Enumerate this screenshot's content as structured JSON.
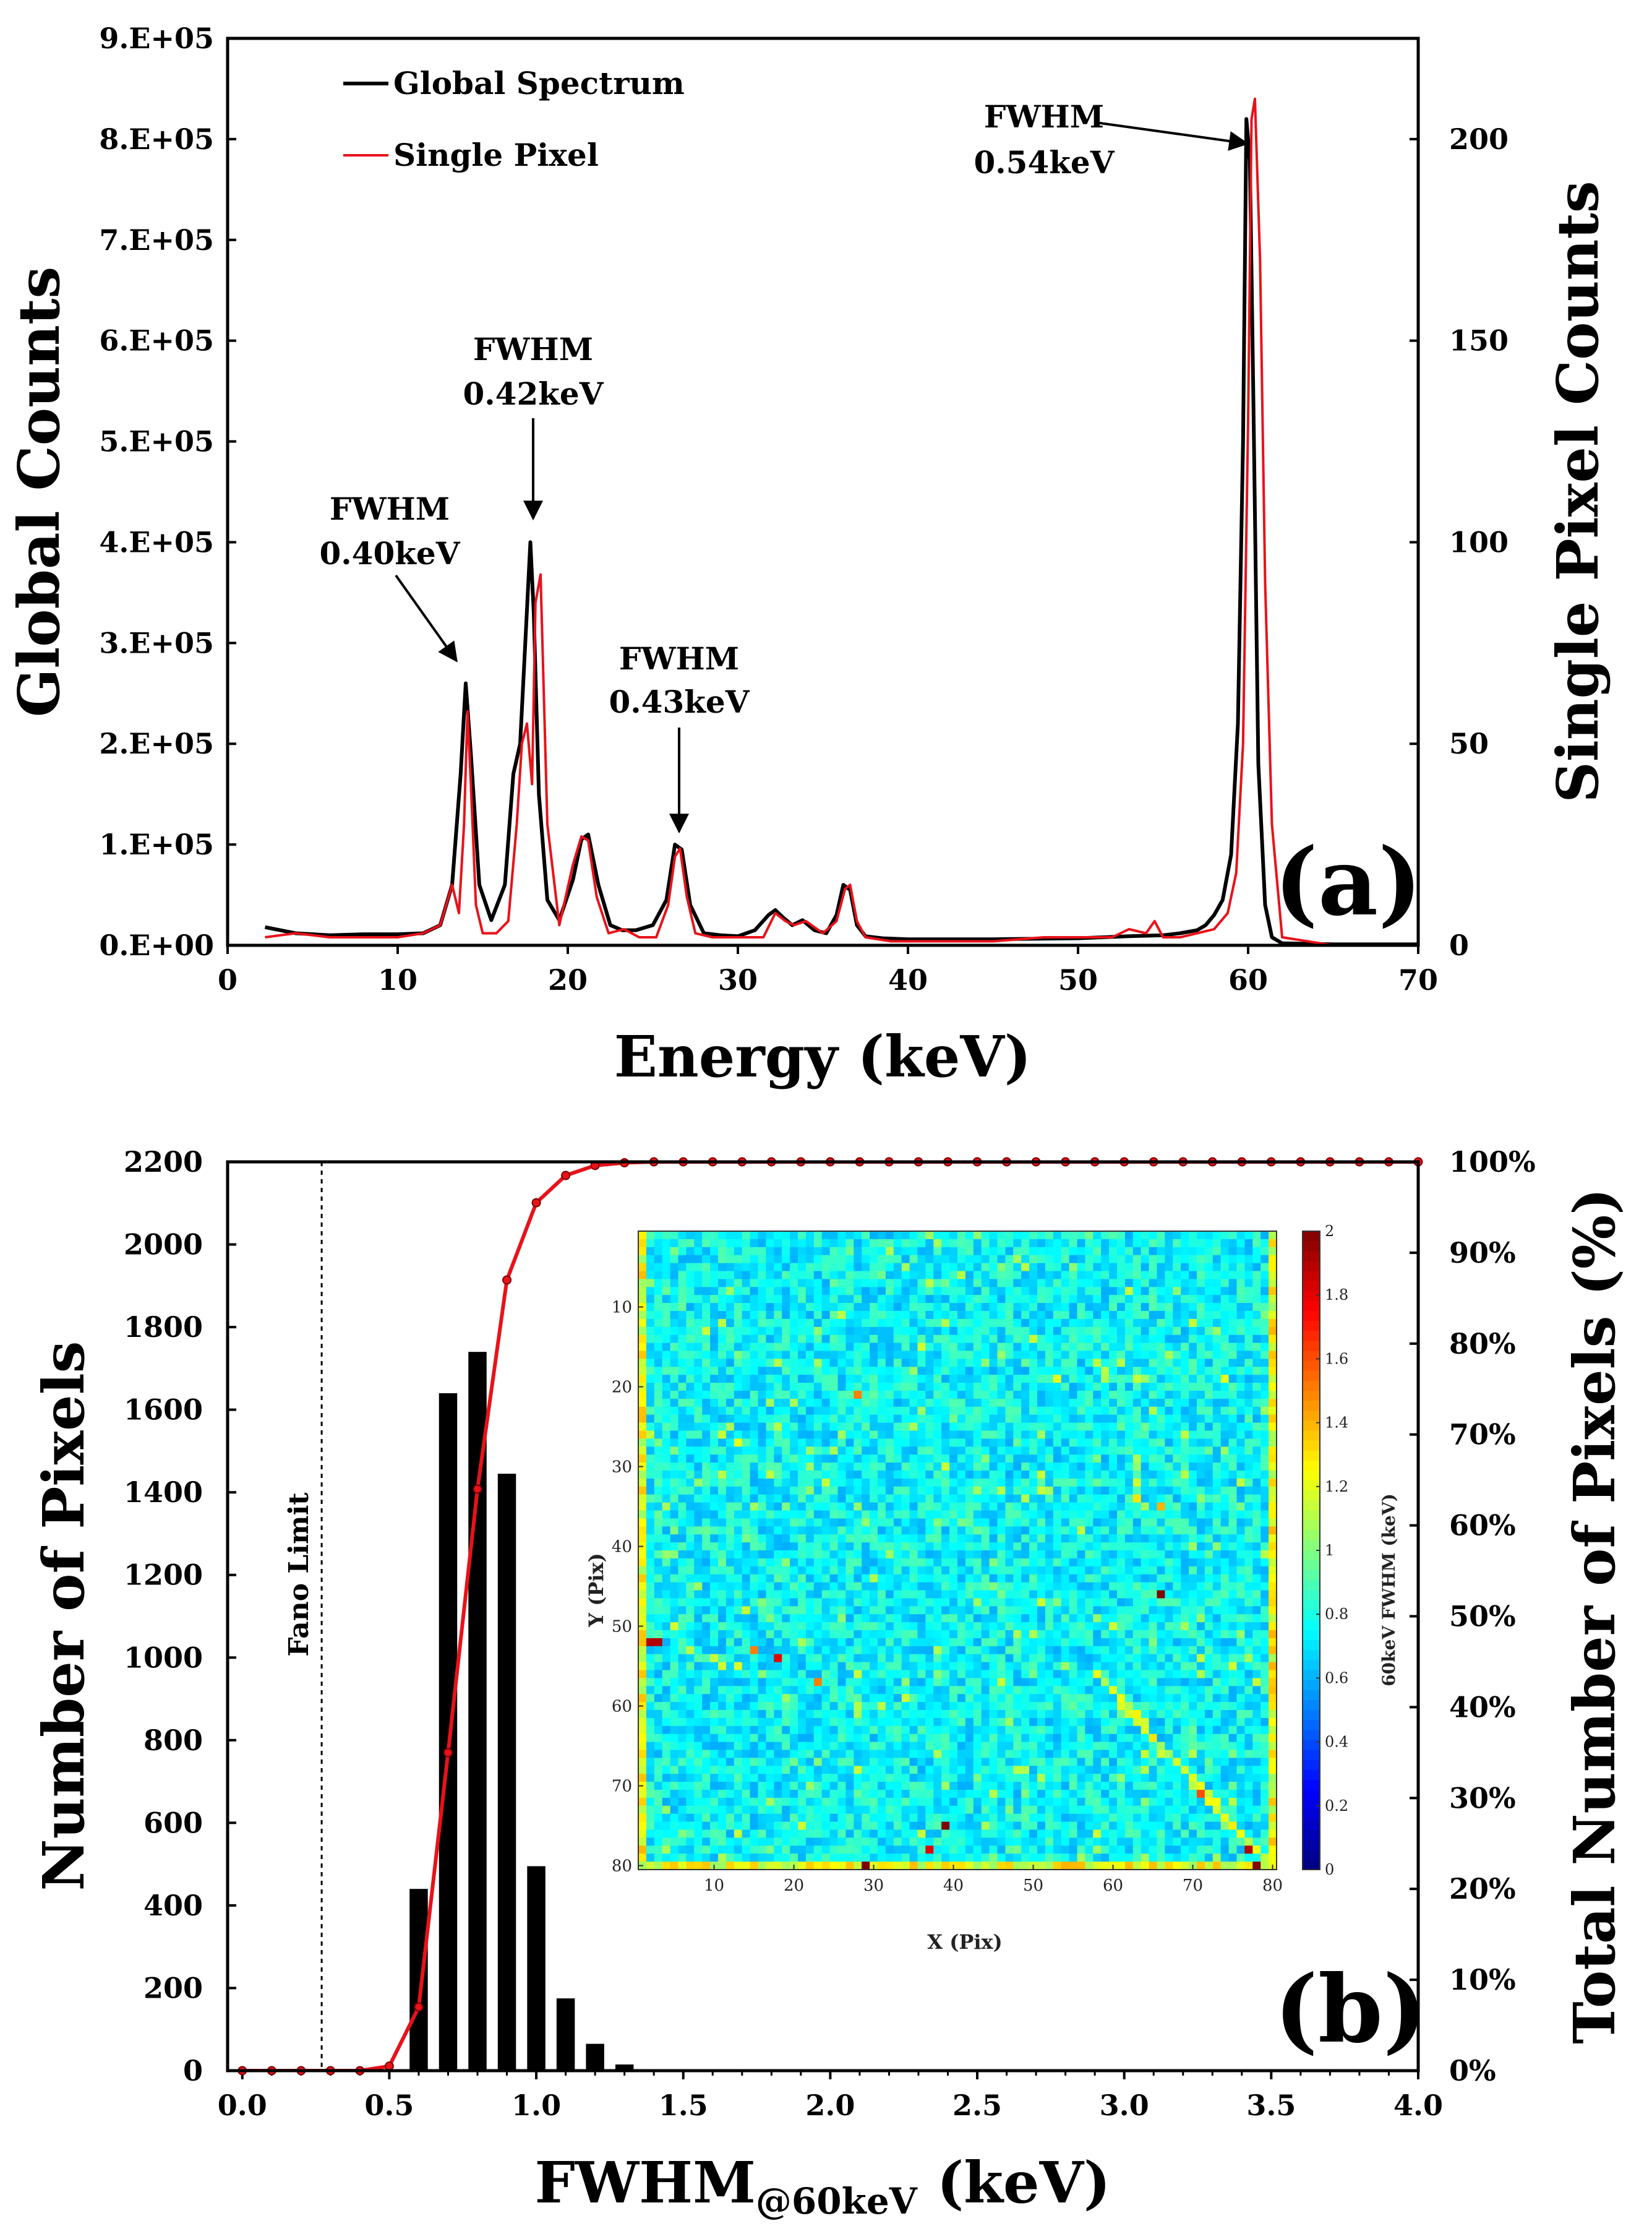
{
  "colors": {
    "global": "#000000",
    "single": "#e8121a",
    "bars": "#000000",
    "cumulative": "#e8121a"
  },
  "chart_data": [
    {
      "id": "a",
      "type": "line",
      "panel_label": "(a)",
      "xlabel": "Energy (keV)",
      "ylabel": "Global Counts",
      "ylabel_right": "Single Pixel Counts",
      "xlim": [
        0,
        70
      ],
      "ylim": [
        0,
        900000
      ],
      "ylim_right": [
        0,
        225
      ],
      "x_ticks": [
        "0",
        "10",
        "20",
        "30",
        "40",
        "50",
        "60",
        "70"
      ],
      "y_ticks": [
        "0.E+00",
        "1.E+05",
        "2.E+05",
        "3.E+05",
        "4.E+05",
        "5.E+05",
        "6.E+05",
        "7.E+05",
        "8.E+05",
        "9.E+05"
      ],
      "y_ticks_right": [
        "0",
        "50",
        "100",
        "150",
        "200"
      ],
      "legend": [
        "Global Spectrum",
        "Single Pixel"
      ],
      "annotations": [
        {
          "line1": "FWHM",
          "line2": "0.40keV",
          "x": 14.0,
          "y": 260000
        },
        {
          "line1": "FWHM",
          "line2": "0.42keV",
          "x": 17.8,
          "y": 400000
        },
        {
          "line1": "FWHM",
          "line2": "0.43keV",
          "x": 26.4,
          "y": 100000
        },
        {
          "line1": "FWHM",
          "line2": "0.54keV",
          "x": 59.9,
          "y": 820000
        }
      ],
      "series": [
        {
          "name": "Global Spectrum",
          "axis": "left",
          "x": [
            2.2,
            4,
            6,
            8,
            10,
            11.5,
            12.5,
            13.2,
            13.7,
            14.0,
            14.3,
            14.8,
            15.5,
            16.3,
            16.8,
            17.2,
            17.5,
            17.8,
            18.0,
            18.3,
            18.8,
            19.5,
            20.3,
            20.8,
            21.2,
            21.8,
            22.5,
            23.2,
            24.0,
            25.0,
            25.8,
            26.3,
            26.7,
            27.2,
            28,
            29,
            30,
            31,
            31.8,
            32.2,
            32.7,
            33.2,
            33.8,
            34.5,
            35.2,
            35.8,
            36.2,
            36.6,
            37.0,
            37.5,
            38.5,
            40,
            45,
            50,
            53,
            55,
            56,
            57,
            57.5,
            58,
            58.5,
            59,
            59.4,
            59.7,
            59.9,
            60.1,
            60.3,
            60.6,
            61,
            61.4,
            62,
            65,
            70
          ],
          "y": [
            18000,
            12000,
            10000,
            11000,
            11000,
            12000,
            20000,
            60000,
            170000,
            260000,
            190000,
            60000,
            25000,
            60000,
            170000,
            200000,
            300000,
            400000,
            330000,
            150000,
            45000,
            25000,
            65000,
            105000,
            110000,
            60000,
            20000,
            15000,
            15000,
            20000,
            45000,
            100000,
            95000,
            40000,
            12000,
            10000,
            9000,
            15000,
            30000,
            35000,
            27000,
            20000,
            25000,
            15000,
            12000,
            30000,
            60000,
            55000,
            20000,
            9000,
            7000,
            6000,
            6000,
            7000,
            9000,
            10000,
            12000,
            15000,
            20000,
            30000,
            45000,
            90000,
            220000,
            500000,
            820000,
            780000,
            550000,
            180000,
            40000,
            8000,
            2000,
            1000,
            1000
          ]
        },
        {
          "name": "Single Pixel",
          "axis": "right",
          "x": [
            2.2,
            4,
            6,
            8,
            10,
            11.5,
            12.5,
            13.2,
            13.6,
            13.9,
            14.1,
            14.3,
            14.6,
            15.0,
            15.8,
            16.5,
            17.0,
            17.3,
            17.6,
            17.9,
            18.1,
            18.4,
            18.8,
            19.5,
            20.3,
            20.8,
            21.2,
            21.7,
            22.4,
            23.3,
            24.2,
            25.2,
            25.9,
            26.3,
            26.6,
            27.0,
            27.5,
            28.5,
            30,
            31.5,
            32.2,
            32.8,
            33.3,
            34,
            35,
            35.8,
            36.3,
            36.6,
            37.0,
            37.5,
            39,
            42,
            45,
            48,
            50,
            52,
            53,
            54,
            54.5,
            55,
            56,
            57,
            58,
            58.8,
            59.3,
            59.7,
            60.0,
            60.2,
            60.4,
            60.7,
            61.0,
            61.4,
            62,
            65,
            70
          ],
          "y": [
            2,
            3,
            2,
            2,
            2,
            3,
            5,
            15,
            8,
            30,
            58,
            40,
            10,
            3,
            3,
            6,
            30,
            50,
            55,
            40,
            85,
            92,
            30,
            5,
            20,
            27,
            26,
            12,
            3,
            4,
            2,
            2,
            10,
            22,
            24,
            12,
            3,
            2,
            2,
            2,
            8,
            6,
            5,
            6,
            3,
            6,
            14,
            15,
            6,
            2,
            1,
            1,
            1,
            2,
            2,
            2,
            4,
            3,
            6,
            2,
            2,
            3,
            4,
            8,
            18,
            50,
            130,
            205,
            210,
            170,
            90,
            30,
            2,
            0,
            0
          ]
        }
      ]
    },
    {
      "id": "b",
      "type": "bar",
      "panel_label": "(b)",
      "xlabel_main": "FWHM",
      "xlabel_sub": "@60keV",
      "xlabel_unit": " (keV)",
      "ylabel": "Number of Pixels",
      "ylabel_right": "Total Number of Pixels (%)",
      "xlim": [
        -0.05,
        4.0
      ],
      "ylim": [
        0,
        2200
      ],
      "ylim_right": [
        0,
        100
      ],
      "x_ticks": [
        "0.0",
        "0.5",
        "1.0",
        "1.5",
        "2.0",
        "2.5",
        "3.0",
        "3.5",
        "4.0"
      ],
      "y_ticks": [
        "0",
        "200",
        "400",
        "600",
        "800",
        "1000",
        "1200",
        "1400",
        "1600",
        "1800",
        "2000",
        "2200"
      ],
      "y_ticks_right": [
        "0%",
        "10%",
        "20%",
        "30%",
        "40%",
        "50%",
        "60%",
        "70%",
        "80%",
        "90%",
        "100%"
      ],
      "fano_label": "Fano Limit",
      "fano_x": 0.27,
      "bars": {
        "x": [
          0.6,
          0.7,
          0.8,
          0.9,
          1.0,
          1.1,
          1.2,
          1.3,
          1.4
        ],
        "values": [
          440,
          1640,
          1740,
          1445,
          495,
          175,
          65,
          15,
          3
        ]
      },
      "cumulative": {
        "x": [
          0,
          0.1,
          0.2,
          0.3,
          0.4,
          0.5,
          0.6,
          0.7,
          0.8,
          0.9,
          1.0,
          1.1,
          1.2,
          1.3,
          1.4,
          1.5,
          1.6,
          1.7,
          1.8,
          1.9,
          2.0,
          2.1,
          2.2,
          2.3,
          2.4,
          2.5,
          2.6,
          2.7,
          2.8,
          2.9,
          3.0,
          3.1,
          3.2,
          3.3,
          3.4,
          3.5,
          3.6,
          3.7,
          3.8,
          3.9,
          4.0
        ],
        "values_percent": [
          0,
          0,
          0,
          0,
          0,
          0.5,
          7,
          35,
          64,
          87,
          95.5,
          98.5,
          99.6,
          99.9,
          100,
          100,
          100,
          100,
          100,
          100,
          100,
          100,
          100,
          100,
          100,
          100,
          100,
          100,
          100,
          100,
          100,
          100,
          100,
          100,
          100,
          100,
          100,
          100,
          100,
          100,
          100
        ]
      }
    },
    {
      "id": "inset",
      "type": "heatmap",
      "xlabel": "X (Pix)",
      "ylabel": "Y (Pix)",
      "colorbar_label": "60keV FWHM (keV)",
      "clim": [
        0,
        2
      ],
      "grid": [
        80,
        80
      ],
      "typical_value_keV": 0.75,
      "x_ticks": [
        "10",
        "20",
        "30",
        "40",
        "50",
        "60",
        "70",
        "80"
      ],
      "y_ticks": [
        "10",
        "20",
        "30",
        "40",
        "50",
        "60",
        "70",
        "80"
      ],
      "colorbar_ticks": [
        "0",
        "0.2",
        "0.4",
        "0.6",
        "0.8",
        "1",
        "1.2",
        "1.4",
        "1.6",
        "1.8",
        "2"
      ],
      "hot_pixels": [
        {
          "x": 2,
          "y": 52,
          "v": 1.9
        },
        {
          "x": 3,
          "y": 52,
          "v": 1.9
        },
        {
          "x": 15,
          "y": 53,
          "v": 1.5
        },
        {
          "x": 18,
          "y": 54,
          "v": 1.8
        },
        {
          "x": 66,
          "y": 46,
          "v": 2.0
        },
        {
          "x": 39,
          "y": 75,
          "v": 2.0
        },
        {
          "x": 37,
          "y": 78,
          "v": 1.8
        },
        {
          "x": 29,
          "y": 80,
          "v": 2.0
        },
        {
          "x": 78,
          "y": 80,
          "v": 2.0
        },
        {
          "x": 77,
          "y": 78,
          "v": 1.9
        },
        {
          "x": 71,
          "y": 71,
          "v": 1.6
        },
        {
          "x": 28,
          "y": 21,
          "v": 1.5
        },
        {
          "x": 13,
          "y": 27,
          "v": 1.2
        },
        {
          "x": 23,
          "y": 57,
          "v": 1.5
        },
        {
          "x": 63,
          "y": 34,
          "v": 1.3
        },
        {
          "x": 66,
          "y": 35,
          "v": 1.4
        },
        {
          "x": 53,
          "y": 19,
          "v": 1.2
        },
        {
          "x": 74,
          "y": 19,
          "v": 1.2
        }
      ]
    }
  ]
}
